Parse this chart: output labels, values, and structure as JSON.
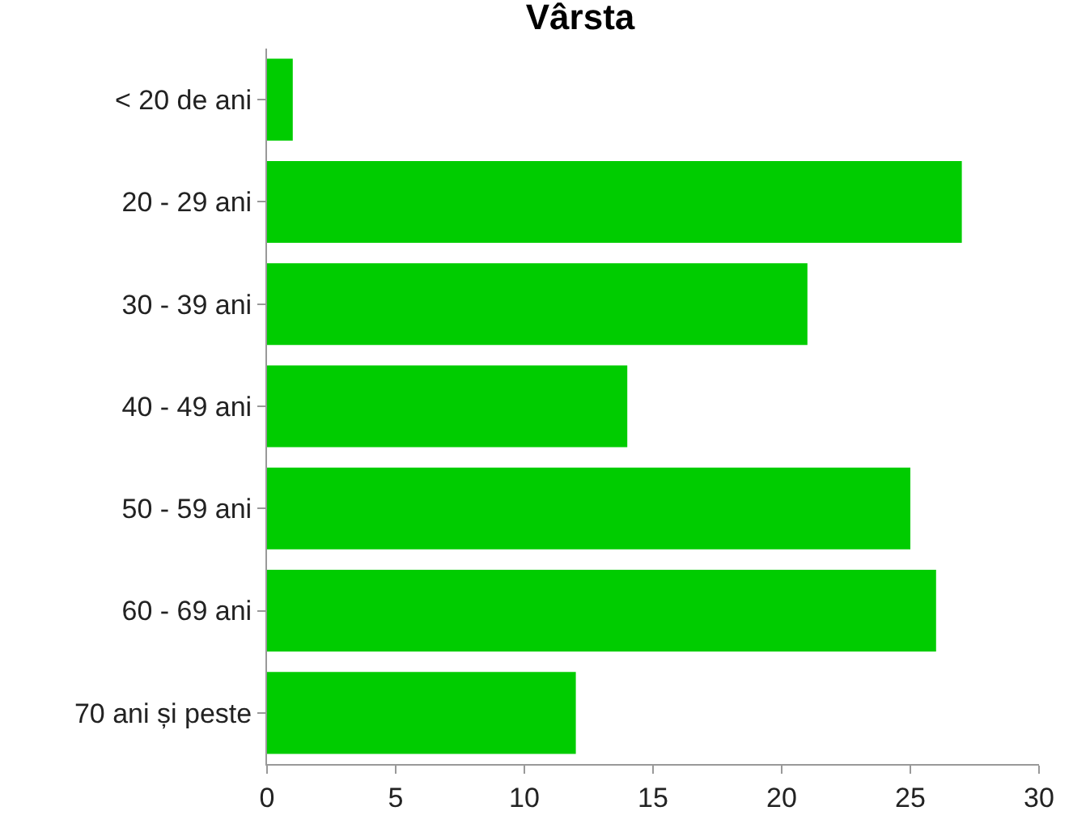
{
  "chart_data": {
    "type": "bar",
    "orientation": "horizontal",
    "title": "Vârsta",
    "categories": [
      "< 20 de ani",
      "20 - 29 ani",
      "30 - 39 ani",
      "40 - 49 ani",
      "50 - 59 ani",
      "60 - 69 ani",
      "70 ani și peste"
    ],
    "values": [
      1,
      27,
      21,
      14,
      25,
      26,
      12
    ],
    "color": "#00cc00",
    "xlim": [
      0,
      30
    ],
    "xticks": [
      0,
      5,
      10,
      15,
      20,
      25,
      30
    ]
  }
}
